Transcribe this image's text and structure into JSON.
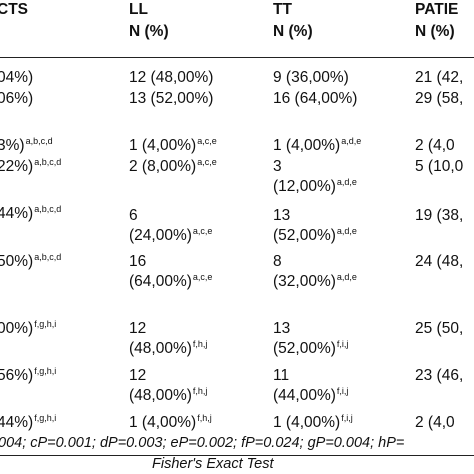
{
  "header": {
    "col1": {
      "title": "CTS",
      "sub": ""
    },
    "col2": {
      "title": "LL",
      "sub": "N (%)"
    },
    "col3": {
      "title": "TT",
      "sub": "N (%)"
    },
    "col4": {
      "title": "PATIE",
      "sub": "N (%)"
    }
  },
  "cells": {
    "r1c1": "04%)",
    "r1c2": "12 (48,00%)",
    "r1c3": "9 (36,00%)",
    "r1c4": "21 (42,",
    "r2c1": "06%)",
    "r2c2": "13 (52,00%)",
    "r2c3": "16 (64,00%)",
    "r2c4": "29 (58,",
    "r3c1": "3%)",
    "r3c1sup": "a,b,c,d",
    "r3c2": "1 (4,00%)",
    "r3c2sup": "a,c,e",
    "r3c3": "1 (4,00%)",
    "r3c3sup": "a,d,e",
    "r3c4": "2 (4,0",
    "r4c1": "22%)",
    "r4c1sup": "a,b,c,d",
    "r4c2": "2 (8,00%)",
    "r4c2sup": "a,c,e",
    "r4c3a": "3",
    "r4c3b": "(12,00%)",
    "r4c3sup": "a,d,e",
    "r4c4": "5 (10,0",
    "r5c1": "44%)",
    "r5c1sup": "a,b,c,d",
    "r5c2a": "6",
    "r5c2b": "(24,00%)",
    "r5c2sup": "a,c,e",
    "r5c3a": "13",
    "r5c3b": "(52,00%)",
    "r5c3sup": "a,d,e",
    "r5c4": "19 (38,",
    "r6c1": "50%)",
    "r6c1sup": "a,b,c,d",
    "r6c2a": "16",
    "r6c2b": "(64,00%)",
    "r6c2sup": "a,c,e",
    "r6c3a": "8",
    "r6c3b": "(32,00%)",
    "r6c3sup": "a,d,e",
    "r6c4": "24 (48,",
    "r7c1": "00%)",
    "r7c1sup": "f,g,h,i",
    "r7c2a": "12",
    "r7c2b": "(48,00%)",
    "r7c2sup": "f,h,j",
    "r7c3a": "13",
    "r7c3b": "(52,00%)",
    "r7c3sup": "f,i,j",
    "r7c4": "25 (50,",
    "r8c1": "56%)",
    "r8c1sup": "f,g,h,i",
    "r8c2a": "12",
    "r8c2b": "(48,00%)",
    "r8c2sup": "f,h,j",
    "r8c3a": "11",
    "r8c3b": "(44,00%)",
    "r8c3sup": "f,i,j",
    "r8c4": "23 (46,",
    "r9c1": "44%)",
    "r9c1sup": "f,g,h,i",
    "r9c2": "1 (4,00%)",
    "r9c2sup": "f,h,j",
    "r9c3": "1 (4,00%)",
    "r9c3sup": "f,i,j",
    "r9c4": "2 (4,0"
  },
  "footnote": {
    "stats": "004; cP=0.001; dP=0.003; eP=0.002; fP=0.024; gP=0.004; hP=",
    "test": "Fisher's Exact Test"
  }
}
